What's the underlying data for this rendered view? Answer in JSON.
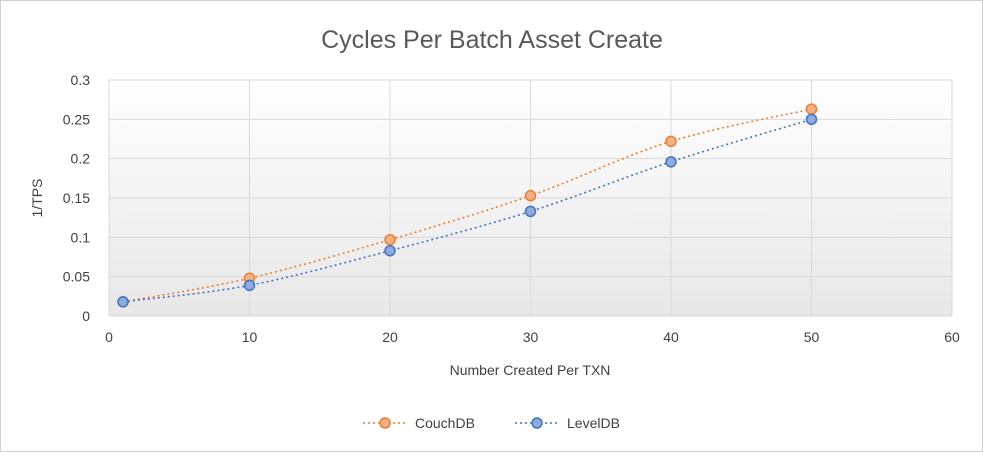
{
  "chart_data": {
    "type": "scatter",
    "title": "Cycles Per Batch Asset Create",
    "xlabel": "Number Created Per TXN",
    "ylabel": "1/TPS",
    "xlim": [
      0,
      60
    ],
    "ylim": [
      0,
      0.3
    ],
    "xticks": [
      "0",
      "10",
      "20",
      "30",
      "40",
      "50",
      "60"
    ],
    "yticks": [
      "0",
      "0.05",
      "0.1",
      "0.15",
      "0.2",
      "0.25",
      "0.3"
    ],
    "grid": true,
    "legend_position": "bottom",
    "series": [
      {
        "name": "CouchDB",
        "color": "#ed7d31",
        "marker_fill": "#f4b183",
        "line_style": "dotted smooth",
        "x": [
          1,
          10,
          20,
          30,
          40,
          50
        ],
        "y": [
          0.018,
          0.048,
          0.097,
          0.153,
          0.222,
          0.263
        ]
      },
      {
        "name": "LevelDB",
        "color": "#4472c4",
        "marker_fill": "#8faadc",
        "line_style": "dotted smooth",
        "x": [
          1,
          10,
          20,
          30,
          40,
          50
        ],
        "y": [
          0.018,
          0.039,
          0.083,
          0.133,
          0.196,
          0.25
        ]
      }
    ]
  }
}
